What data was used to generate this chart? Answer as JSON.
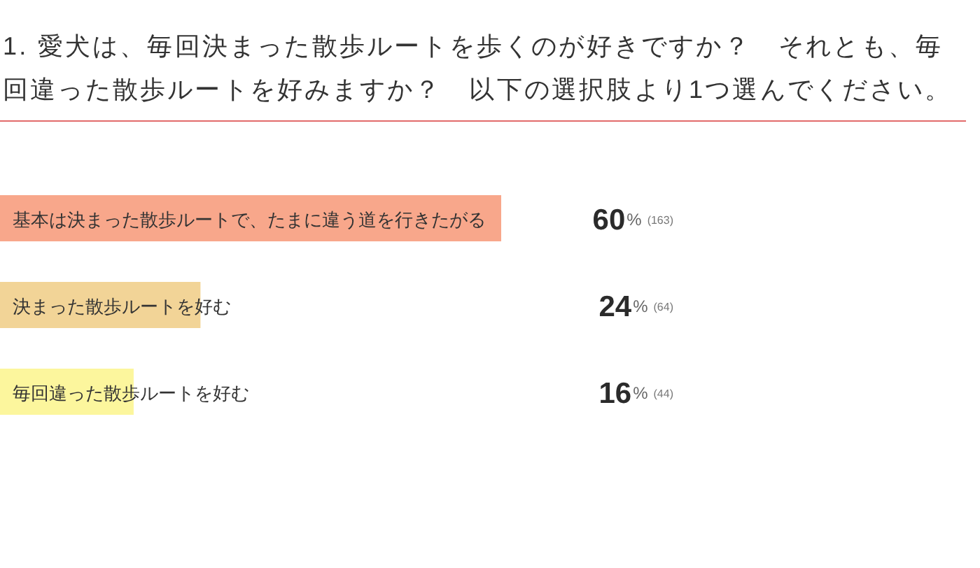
{
  "chart_data": {
    "type": "bar",
    "orientation": "horizontal",
    "title": "1. 愛犬は、毎回決まった散歩ルートを歩くのが好きですか？　それとも、毎回違った散歩ルートを好みますか？　以下の選択肢より1つ選んでください。",
    "categories": [
      "基本は決まった散歩ルートで、たまに違う道を行きたがる",
      "決まった散歩ルートを好む",
      "毎回違った散歩ルートを好む"
    ],
    "values": [
      60,
      24,
      16
    ],
    "colors": [
      "#f8a78b",
      "#f2d497",
      "#fcf69d"
    ],
    "value_labels": [
      "60% (163)",
      "24% (64)",
      "16% (44)"
    ]
  }
}
